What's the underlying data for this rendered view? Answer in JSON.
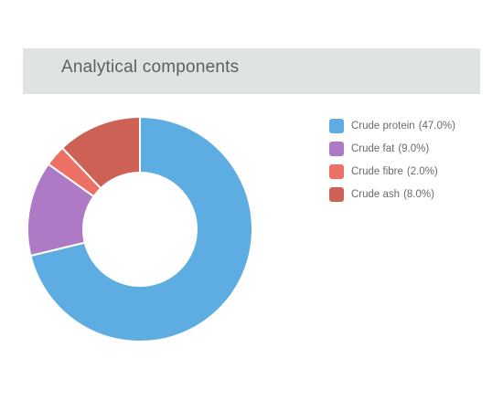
{
  "header": {
    "title": "Analytical components"
  },
  "colors": {
    "header_bg": "#e0e4e1",
    "slice_border": "#ffffff"
  },
  "chart_data": {
    "type": "pie",
    "donut": true,
    "title": "",
    "legend_position": "right",
    "categories": [
      "Crude protein",
      "Crude fat",
      "Crude fibre",
      "Crude ash"
    ],
    "values": [
      47.0,
      9.0,
      2.0,
      8.0
    ],
    "labels": [
      "(47.0%)",
      "(9.0%)",
      "(2.0%)",
      "(8.0%)"
    ],
    "colors": [
      "#5dade2",
      "#af7ac5",
      "#ec7063",
      "#cd6155"
    ]
  }
}
